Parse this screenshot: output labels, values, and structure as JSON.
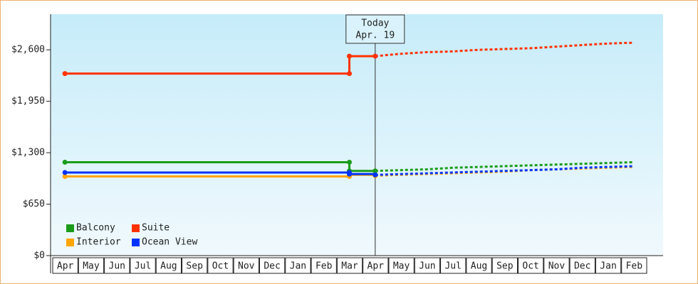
{
  "chart_data": {
    "type": "line",
    "categories": [
      "Apr",
      "May",
      "Jun",
      "Jul",
      "Aug",
      "Sep",
      "Oct",
      "Nov",
      "Dec",
      "Jan",
      "Feb",
      "Mar",
      "Apr",
      "May",
      "Jun",
      "Jul",
      "Aug",
      "Sep",
      "Oct",
      "Nov",
      "Dec",
      "Jan",
      "Feb"
    ],
    "ylim": [
      0,
      3050
    ],
    "yticks": [
      {
        "value": 0,
        "label": "$0"
      },
      {
        "value": 650,
        "label": "$650"
      },
      {
        "value": 1300,
        "label": "$1,300"
      },
      {
        "value": 1950,
        "label": "$1,950"
      },
      {
        "value": 2600,
        "label": "$2,600"
      }
    ],
    "annotation": {
      "title": "Today",
      "subtitle": "Apr. 19"
    },
    "legend": "lower left",
    "series": [
      {
        "name": "Balcony",
        "color": "#1a9c1a",
        "values": [
          1180,
          1180,
          1180,
          1180,
          1180,
          1180,
          1180,
          1180,
          1180,
          1180,
          1180,
          1070,
          1070,
          null,
          null,
          null,
          null,
          null,
          null,
          null,
          null,
          null,
          null
        ],
        "forecast": [
          null,
          null,
          null,
          null,
          null,
          null,
          null,
          null,
          null,
          null,
          null,
          null,
          1070,
          1080,
          1090,
          1110,
          1120,
          1130,
          1140,
          1150,
          1160,
          1170,
          1180
        ]
      },
      {
        "name": "Suite",
        "color": "#ff3300",
        "values": [
          2300,
          2300,
          2300,
          2300,
          2300,
          2300,
          2300,
          2300,
          2300,
          2300,
          2300,
          2520,
          2520,
          null,
          null,
          null,
          null,
          null,
          null,
          null,
          null,
          null,
          null
        ],
        "forecast": [
          null,
          null,
          null,
          null,
          null,
          null,
          null,
          null,
          null,
          null,
          null,
          null,
          2520,
          2550,
          2570,
          2580,
          2600,
          2610,
          2620,
          2640,
          2660,
          2680,
          2690
        ]
      },
      {
        "name": "Interior",
        "color": "#ffa500",
        "values": [
          1000,
          1000,
          1000,
          1000,
          1000,
          1000,
          1000,
          1000,
          1000,
          1000,
          1000,
          1020,
          1010,
          null,
          null,
          null,
          null,
          null,
          null,
          null,
          null,
          null,
          null
        ],
        "forecast": [
          null,
          null,
          null,
          null,
          null,
          null,
          null,
          null,
          null,
          null,
          null,
          null,
          1010,
          1020,
          1030,
          1040,
          1050,
          1060,
          1080,
          1090,
          1100,
          1110,
          1120
        ]
      },
      {
        "name": "Ocean View",
        "color": "#0033ff",
        "values": [
          1050,
          1050,
          1050,
          1050,
          1050,
          1050,
          1050,
          1050,
          1050,
          1050,
          1050,
          1030,
          1020,
          null,
          null,
          null,
          null,
          null,
          null,
          null,
          null,
          null,
          null
        ],
        "forecast": [
          null,
          null,
          null,
          null,
          null,
          null,
          null,
          null,
          null,
          null,
          null,
          null,
          1020,
          1030,
          1040,
          1050,
          1060,
          1070,
          1080,
          1090,
          1110,
          1120,
          1130
        ]
      }
    ]
  }
}
